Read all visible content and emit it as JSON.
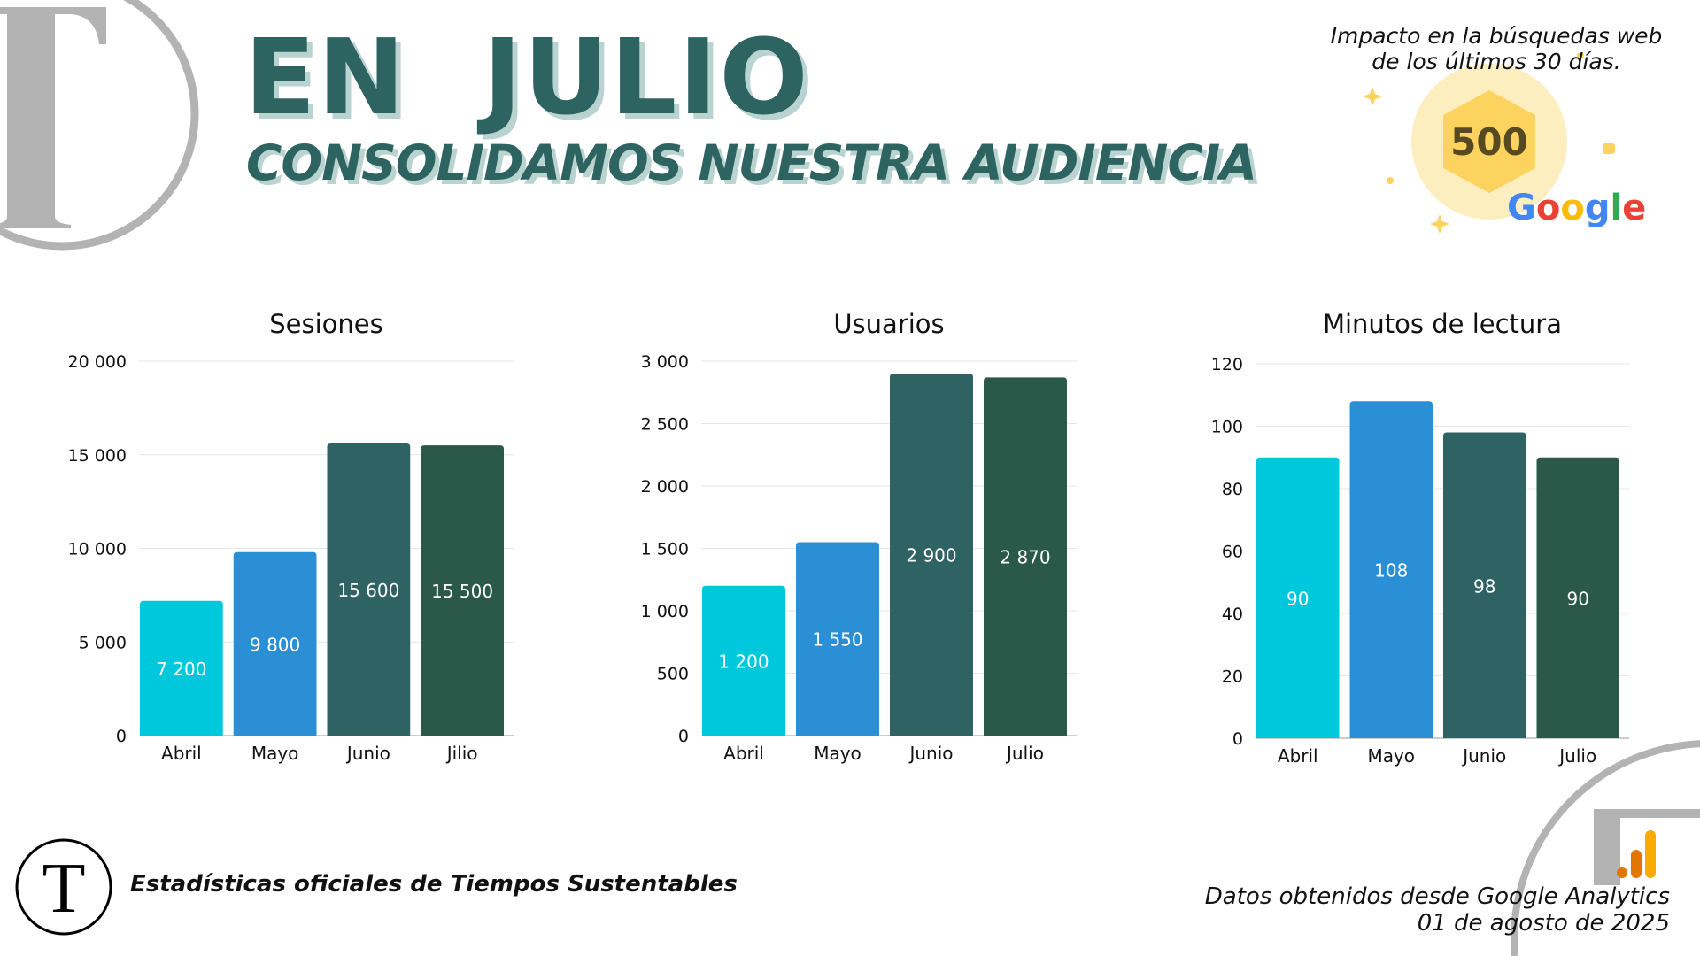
{
  "header": {
    "title": "EN  JULIO",
    "subtitle": "CONSOLIDAMOS NUESTRA AUDIENCIA"
  },
  "badge": {
    "caption_line1": "Impacto en la búsquedas web",
    "caption_line2": "de los últimos 30 días.",
    "value": "500",
    "brand": "Google"
  },
  "footer": {
    "left_text": "Estadísticas oficiales de Tiempos Sustentables",
    "logo_letter": "T",
    "source_line1": "Datos obtenidos  desde Google Analytics",
    "source_line2": "01 de agosto de 2025"
  },
  "colors": [
    "#00c8dc",
    "#2b8fd6",
    "#2f6363",
    "#2a5849"
  ],
  "chart_data": [
    {
      "type": "bar",
      "title": "Sesiones",
      "categories": [
        "Abril",
        "Mayo",
        "Junio",
        "Jilio"
      ],
      "values": [
        7200,
        9800,
        15600,
        15500
      ],
      "data_labels": [
        "7 200",
        "9 800",
        "15 600",
        "15 500"
      ],
      "ylim": [
        0,
        20000
      ],
      "yticks": [
        0,
        5000,
        10000,
        15000,
        20000
      ],
      "ytick_labels": [
        "0",
        "5 000",
        "10 000",
        "15 000",
        "20 000"
      ],
      "grid": true
    },
    {
      "type": "bar",
      "title": "Usuarios",
      "categories": [
        "Abril",
        "Mayo",
        "Junio",
        "Julio"
      ],
      "values": [
        1200,
        1550,
        2900,
        2870
      ],
      "data_labels": [
        "1 200",
        "1 550",
        "2 900",
        "2 870"
      ],
      "ylim": [
        0,
        3000
      ],
      "yticks": [
        0,
        500,
        1000,
        1500,
        2000,
        2500,
        3000
      ],
      "ytick_labels": [
        "0",
        "500",
        "1 000",
        "1 500",
        "2 000",
        "2 500",
        "3 000"
      ],
      "grid": true
    },
    {
      "type": "bar",
      "title": "Minutos de lectura",
      "categories": [
        "Abril",
        "Mayo",
        "Junio",
        "Julio"
      ],
      "values": [
        90,
        108,
        98,
        90
      ],
      "data_labels": [
        "90",
        "108",
        "98",
        "90"
      ],
      "ylim": [
        0,
        120
      ],
      "yticks": [
        0,
        20,
        40,
        60,
        80,
        100,
        120
      ],
      "ytick_labels": [
        "0",
        "20",
        "40",
        "60",
        "80",
        "100",
        "120"
      ],
      "grid": true
    }
  ]
}
